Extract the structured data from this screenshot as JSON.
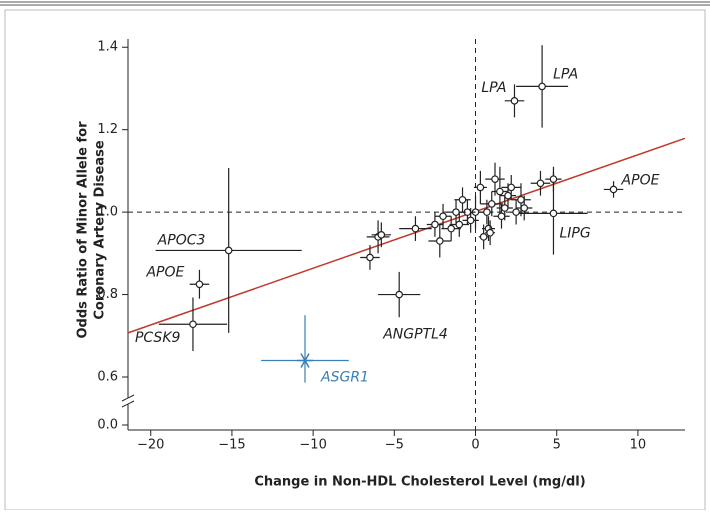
{
  "chart_data": {
    "type": "scatter",
    "xlabel": "Change in Non-HDL Cholesterol Level (mg/dl)",
    "ylabel": [
      "Odds Ratio of Minor Allele for",
      "Coronary Artery Disease"
    ],
    "xlim": [
      -21.4,
      12.9
    ],
    "ylim": [
      0,
      1.42
    ],
    "axis_break": [
      0,
      0.6
    ],
    "xticks": [
      {
        "value": -20,
        "label": "−20"
      },
      {
        "value": -15,
        "label": "−15"
      },
      {
        "value": -10,
        "label": "−10"
      },
      {
        "value": -5,
        "label": "−5"
      },
      0,
      5,
      10
    ],
    "yticks": [
      {
        "value": 0,
        "label": "0.0"
      },
      0.6,
      0.8,
      {
        "value": 1,
        "label": "1.0"
      },
      1.2,
      1.4
    ],
    "reference_lines": {
      "x": [
        0
      ],
      "y": [
        1
      ]
    },
    "fit_line": {
      "color": "#c0392b",
      "x": [
        -21.4,
        12.9
      ],
      "y": [
        0.707,
        1.179
      ]
    },
    "series": [
      {
        "color": "#222222",
        "marker": "circle",
        "labels": [
          "LPA",
          "LPA",
          "APOE",
          "LIPG",
          "APOC3",
          "APOE",
          "PCSK9",
          "ANGPTL4",
          null,
          null,
          null,
          null,
          null,
          null,
          null,
          null,
          null,
          null,
          null,
          null,
          null,
          null,
          null,
          null,
          null,
          null,
          null,
          null,
          null,
          null,
          null,
          null,
          null,
          null,
          null,
          null,
          null,
          null,
          null
        ],
        "x": [
          4.1,
          2.4,
          8.5,
          4.8,
          -15.2,
          -17,
          -17.4,
          -4.7,
          -6.5,
          -6,
          -5.8,
          -3.7,
          -2.2,
          -2,
          -1,
          0,
          0.5,
          0.8,
          1.2,
          1.5,
          2.2,
          2,
          1,
          -0.5,
          0.3,
          -1.5,
          -0.8,
          3,
          2.5,
          4,
          4.8,
          0.7,
          1.8,
          -0.3,
          -1.2,
          0.9,
          1.6,
          2.8,
          -2.5
        ],
        "values": [
          1.305,
          1.27,
          1.055,
          0.997,
          0.907,
          0.825,
          0.728,
          0.8,
          0.89,
          0.94,
          0.945,
          0.96,
          0.93,
          0.99,
          0.97,
          1.0,
          0.94,
          0.96,
          1.08,
          1.05,
          1.06,
          1.04,
          1.02,
          1.0,
          1.06,
          0.96,
          1.03,
          1.01,
          1.0,
          1.07,
          1.08,
          1.0,
          1.01,
          0.98,
          1.0,
          0.95,
          0.99,
          1.03,
          0.97
        ],
        "xerr": [
          1.6,
          0.6,
          0.6,
          2.1,
          4.5,
          0.6,
          2.1,
          1.3,
          0.6,
          0.7,
          0.6,
          1.0,
          0.7,
          0.5,
          0.6,
          0.5,
          0.3,
          0.4,
          0.6,
          0.5,
          0.6,
          0.5,
          0.7,
          0.5,
          0.4,
          0.6,
          0.5,
          0.5,
          0.4,
          0.6,
          0.5,
          0.4,
          0.5,
          0.5,
          0.6,
          0.3,
          0.5,
          0.6,
          0.5
        ],
        "yerr": [
          0.1,
          0.04,
          0.02,
          0.1,
          0.2,
          0.035,
          0.065,
          0.055,
          0.03,
          0.04,
          0.03,
          0.03,
          0.04,
          0.03,
          0.03,
          0.04,
          0.03,
          0.03,
          0.04,
          0.06,
          0.03,
          0.03,
          0.03,
          0.03,
          0.04,
          0.03,
          0.03,
          0.03,
          0.03,
          0.03,
          0.03,
          0.03,
          0.03,
          0.03,
          0.03,
          0.03,
          0.03,
          0.04,
          0.03
        ]
      },
      {
        "color": "#3a7fb5",
        "marker": "star",
        "labels": [
          "ASGR1"
        ],
        "x": [
          -10.5
        ],
        "values": [
          0.64
        ],
        "xerr": [
          2.7
        ],
        "yerr": [
          0.11
        ]
      }
    ]
  }
}
